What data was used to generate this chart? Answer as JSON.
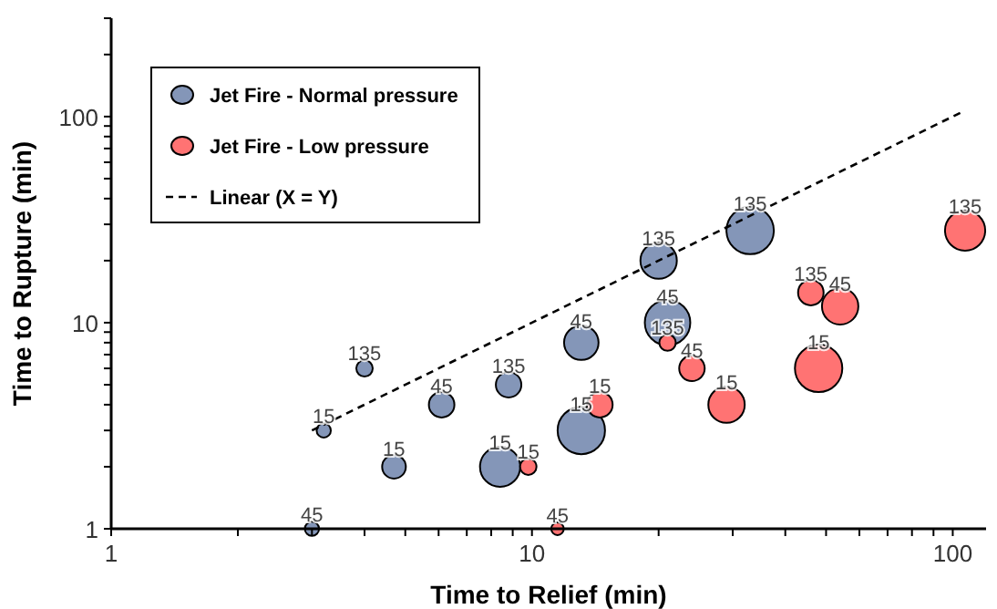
{
  "chart_data": {
    "type": "bubble",
    "xlabel": "Time to Relief (min)",
    "ylabel": "Time to Rupture (min)",
    "log": "xy",
    "grid": false,
    "legend": "top left",
    "xlim": [
      1,
      120
    ],
    "ylim": [
      1,
      300
    ],
    "xticks": [
      1,
      {
        "value": 2,
        "label": null
      },
      {
        "value": 3,
        "label": null
      },
      {
        "value": 4,
        "label": null
      },
      {
        "value": 5,
        "label": null
      },
      {
        "value": 6,
        "label": null
      },
      {
        "value": 7,
        "label": null
      },
      {
        "value": 8,
        "label": null
      },
      {
        "value": 9,
        "label": null
      },
      10,
      {
        "value": 20,
        "label": null
      },
      {
        "value": 30,
        "label": null
      },
      {
        "value": 40,
        "label": null
      },
      {
        "value": 50,
        "label": null
      },
      {
        "value": 60,
        "label": null
      },
      {
        "value": 70,
        "label": null
      },
      {
        "value": 80,
        "label": null
      },
      {
        "value": 90,
        "label": null
      },
      100
    ],
    "yticks": [
      1,
      {
        "value": 2,
        "label": null
      },
      {
        "value": 3,
        "label": null
      },
      {
        "value": 4,
        "label": null
      },
      {
        "value": 5,
        "label": null
      },
      {
        "value": 6,
        "label": null
      },
      {
        "value": 7,
        "label": null
      },
      {
        "value": 8,
        "label": null
      },
      {
        "value": 9,
        "label": null
      },
      10,
      {
        "value": 20,
        "label": null
      },
      {
        "value": 30,
        "label": null
      },
      {
        "value": 40,
        "label": null
      },
      {
        "value": 50,
        "label": null
      },
      {
        "value": 60,
        "label": null
      },
      {
        "value": 70,
        "label": null
      },
      {
        "value": 80,
        "label": null
      },
      {
        "value": 90,
        "label": null
      },
      100,
      {
        "value": 200,
        "label": null
      },
      {
        "value": 300,
        "label": null
      }
    ],
    "series": [
      {
        "name": "Jet Fire - Normal pressure",
        "color": "#8496b8",
        "x": [
          3,
          3.2,
          4,
          4.7,
          6.1,
          8.8,
          8.4,
          13.1,
          13.1,
          20,
          21,
          33
        ],
        "values": [
          1,
          3,
          6,
          2,
          4,
          5,
          2,
          8,
          3,
          20,
          10,
          28
        ],
        "sizes": [
          0.09,
          0.09,
          0.12,
          0.25,
          0.29,
          0.29,
          0.72,
          0.53,
          1,
          0.59,
          0.92,
          1
        ]
      },
      {
        "name": "Jet Fire - Low pressure",
        "color": "#ff7373",
        "x": [
          11.5,
          9.8,
          14.5,
          21,
          24,
          29,
          46,
          54,
          48,
          107
        ],
        "values": [
          1,
          2,
          4,
          8,
          6,
          4,
          14,
          12,
          6,
          28
        ],
        "sizes": [
          0.07,
          0.12,
          0.29,
          0.12,
          0.29,
          0.59,
          0.29,
          0.59,
          1,
          0.72
        ]
      },
      {
        "name": "Linear (X = Y)",
        "type": "line",
        "color": "#000000",
        "line_style": "dashed",
        "marker": "none",
        "x": [
          3,
          105
        ],
        "values": [
          3,
          105
        ]
      }
    ],
    "annotations": [
      {
        "text": "45",
        "x": 3,
        "y": 1
      },
      {
        "text": "15",
        "x": 3.2,
        "y": 3
      },
      {
        "text": "135",
        "x": 4,
        "y": 6
      },
      {
        "text": "15",
        "x": 4.7,
        "y": 2
      },
      {
        "text": "45",
        "x": 6.1,
        "y": 4
      },
      {
        "text": "135",
        "x": 8.8,
        "y": 5
      },
      {
        "text": "15",
        "x": 8.4,
        "y": 2
      },
      {
        "text": "45",
        "x": 13.1,
        "y": 8
      },
      {
        "text": "15",
        "x": 13.1,
        "y": 3
      },
      {
        "text": "135",
        "x": 20,
        "y": 20
      },
      {
        "text": "45",
        "x": 21,
        "y": 10
      },
      {
        "text": "135",
        "x": 33,
        "y": 28
      },
      {
        "text": "45",
        "x": 11.5,
        "y": 1
      },
      {
        "text": "15",
        "x": 9.8,
        "y": 2
      },
      {
        "text": "15",
        "x": 14.5,
        "y": 4
      },
      {
        "text": "135",
        "x": 21,
        "y": 8
      },
      {
        "text": "45",
        "x": 24,
        "y": 6
      },
      {
        "text": "15",
        "x": 29,
        "y": 4
      },
      {
        "text": "135",
        "x": 46,
        "y": 14
      },
      {
        "text": "45",
        "x": 54,
        "y": 12
      },
      {
        "text": "15",
        "x": 48,
        "y": 6
      },
      {
        "text": "135",
        "x": 107,
        "y": 28
      }
    ]
  }
}
